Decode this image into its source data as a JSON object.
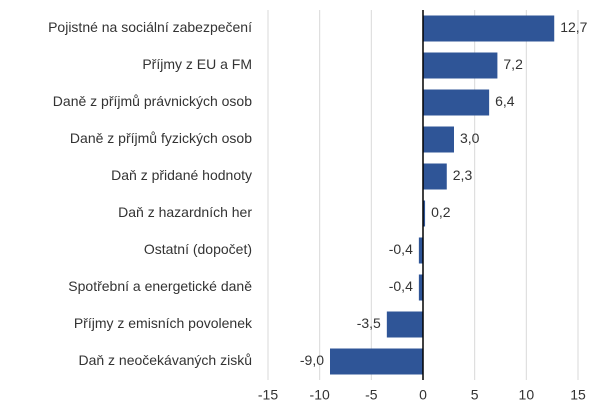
{
  "chart_data": {
    "type": "barh",
    "categories": [
      "Pojistné na sociální zabezpečení",
      "Příjmy z EU a FM",
      "Daně z příjmů právnických osob",
      "Daně z příjmů fyzických osob",
      "Daň z přidané hodnoty",
      "Daň z hazardních her",
      "Ostatní (dopočet)",
      "Spotřební a energetické daně",
      "Příjmy z emisních povolenek",
      "Daň z neočekávaných zisků"
    ],
    "values": [
      12.7,
      7.2,
      6.4,
      3.0,
      2.3,
      0.2,
      -0.4,
      -0.4,
      -3.5,
      -9.0
    ],
    "value_labels": [
      "12,7",
      "7,2",
      "6,4",
      "3,0",
      "2,3",
      "0,2",
      "-0,4",
      "-0,4",
      "-3,5",
      "-9,0"
    ],
    "color": "#2f5597",
    "xlim": [
      -15,
      15
    ],
    "xticks": [
      -15,
      -10,
      -5,
      0,
      5,
      10,
      15
    ],
    "grid": true
  }
}
